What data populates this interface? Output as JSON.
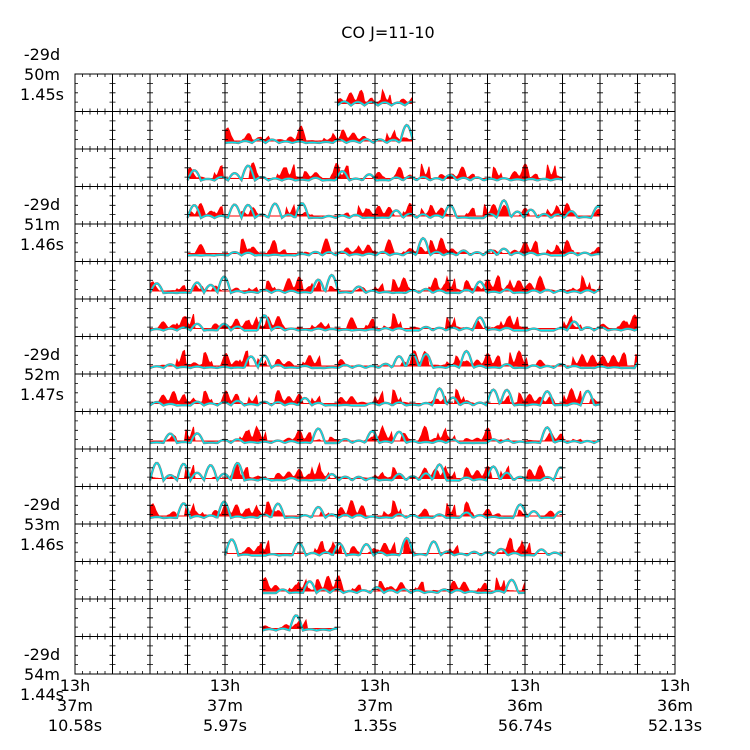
{
  "chart_data": {
    "type": "line",
    "title": "CO J=11-10",
    "grid": {
      "cols": 16,
      "rows": 16
    },
    "y_tick_labels": [
      {
        "row": 0,
        "lines": [
          "-29d",
          "50m",
          "1.45s"
        ]
      },
      {
        "row": 4,
        "lines": [
          "-29d",
          "51m",
          "1.46s"
        ]
      },
      {
        "row": 8,
        "lines": [
          "-29d",
          "52m",
          "1.47s"
        ]
      },
      {
        "row": 12,
        "lines": [
          "-29d",
          "53m",
          "1.46s"
        ]
      },
      {
        "row": 16,
        "lines": [
          "-29d",
          "54m",
          "1.44s"
        ]
      }
    ],
    "x_tick_labels": [
      {
        "col": 0,
        "lines": [
          "13h",
          "37m",
          "10.58s"
        ]
      },
      {
        "col": 4,
        "lines": [
          "13h",
          "37m",
          "5.97s"
        ]
      },
      {
        "col": 8,
        "lines": [
          "13h",
          "37m",
          "1.35s"
        ]
      },
      {
        "col": 12,
        "lines": [
          "13h",
          "36m",
          "56.74s"
        ]
      },
      {
        "col": 16,
        "lines": [
          "13h",
          "36m",
          "52.13s"
        ]
      }
    ],
    "coverage": [
      {
        "row": 0,
        "from": 7,
        "to": 8
      },
      {
        "row": 1,
        "from": 4,
        "to": 8
      },
      {
        "row": 2,
        "from": 3,
        "to": 12
      },
      {
        "row": 3,
        "from": 3,
        "to": 13
      },
      {
        "row": 4,
        "from": 3,
        "to": 13
      },
      {
        "row": 5,
        "from": 2,
        "to": 13
      },
      {
        "row": 6,
        "from": 2,
        "to": 14
      },
      {
        "row": 7,
        "from": 2,
        "to": 14
      },
      {
        "row": 8,
        "from": 2,
        "to": 13
      },
      {
        "row": 9,
        "from": 2,
        "to": 13
      },
      {
        "row": 10,
        "from": 2,
        "to": 12
      },
      {
        "row": 11,
        "from": 2,
        "to": 12
      },
      {
        "row": 12,
        "from": 4,
        "to": 12
      },
      {
        "row": 13,
        "from": 5,
        "to": 11
      },
      {
        "row": 14,
        "from": 5,
        "to": 6
      }
    ],
    "series_colors": {
      "filled": "#ff0000",
      "line": "#00e5ee",
      "line_outline": "#808080"
    }
  }
}
